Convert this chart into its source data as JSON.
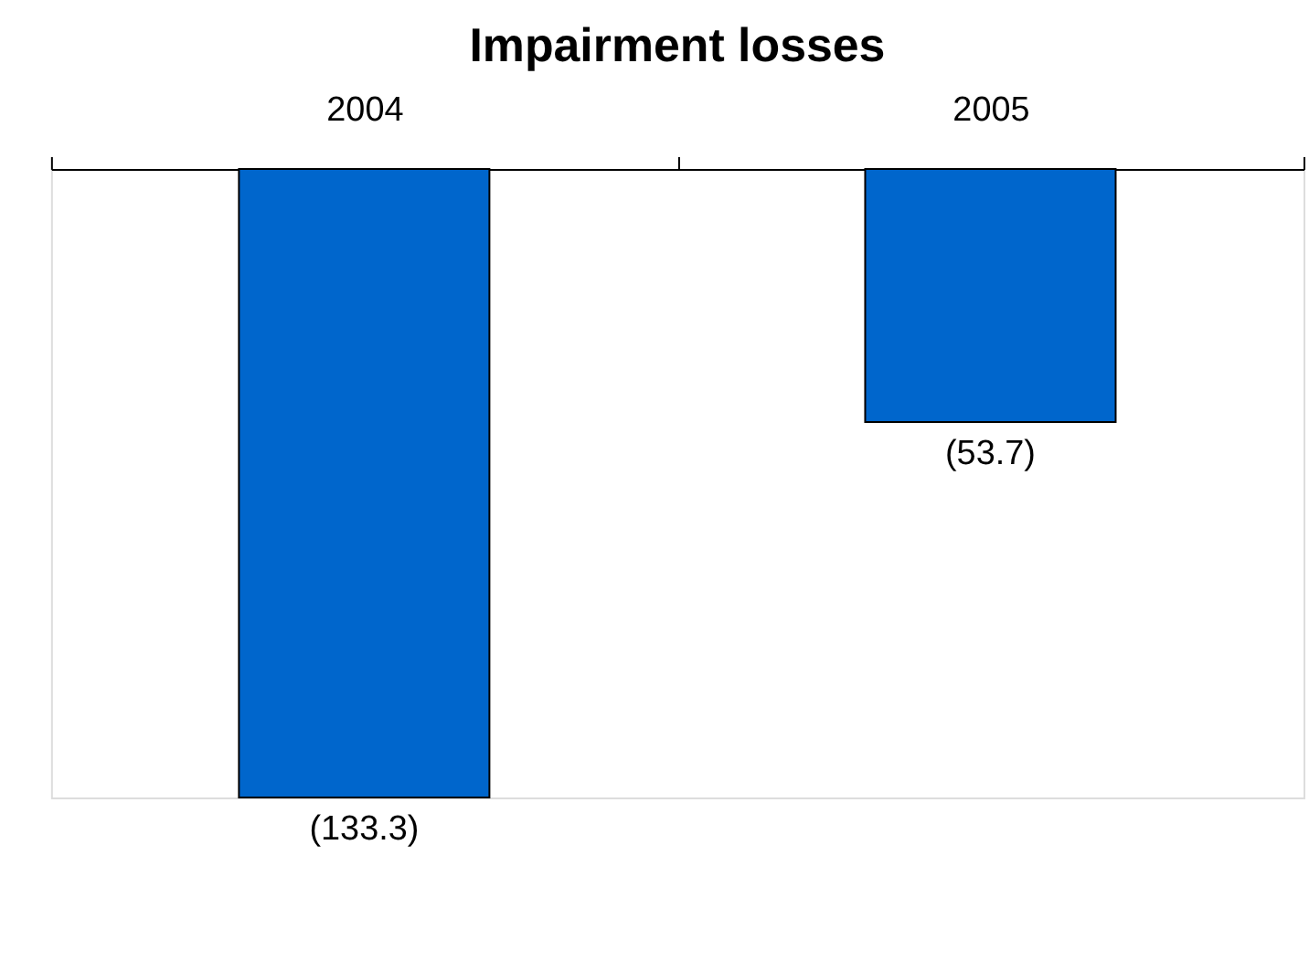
{
  "chart_data": {
    "type": "bar",
    "title": "Impairment losses",
    "categories": [
      "2004",
      "2005"
    ],
    "values": [
      -133.3,
      -53.7
    ],
    "color": "#0066cc",
    "value_labels": [
      "(133.3)",
      "(53.7)"
    ],
    "grid": false
  }
}
